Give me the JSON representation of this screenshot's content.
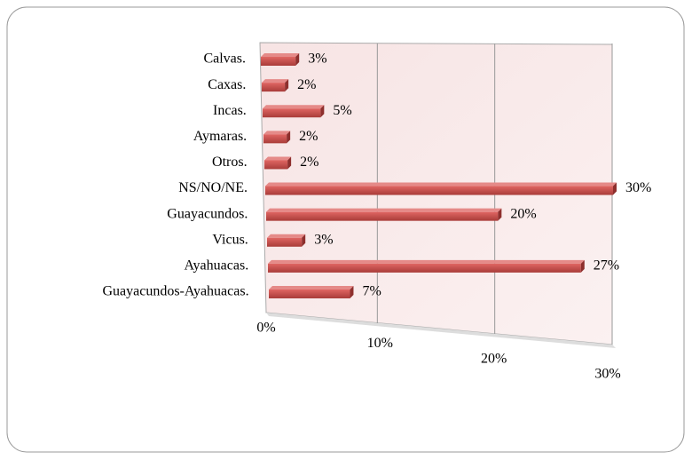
{
  "chart_data": {
    "type": "bar3d_horizontal",
    "categories": [
      "Calvas.",
      "Caxas.",
      "Incas.",
      "Aymaras.",
      "Otros.",
      "NS/NO/NE.",
      "Guayacundos.",
      "Vicus.",
      "Ayahuacas.",
      "Guayacundos-Ayahuacas."
    ],
    "values": [
      3,
      2,
      5,
      2,
      2,
      30,
      20,
      3,
      27,
      7
    ],
    "value_labels": [
      "3%",
      "2%",
      "5%",
      "2%",
      "2%",
      "30%",
      "20%",
      "3%",
      "27%",
      "7%"
    ],
    "color": "#c0504d",
    "xlim": [
      0,
      30
    ],
    "xticks": [
      {
        "value": 0,
        "label": "0%"
      },
      {
        "value": 10,
        "label": "10%"
      },
      {
        "value": 20,
        "label": "20%"
      },
      {
        "value": 30,
        "label": "30%"
      }
    ],
    "grid": true
  }
}
